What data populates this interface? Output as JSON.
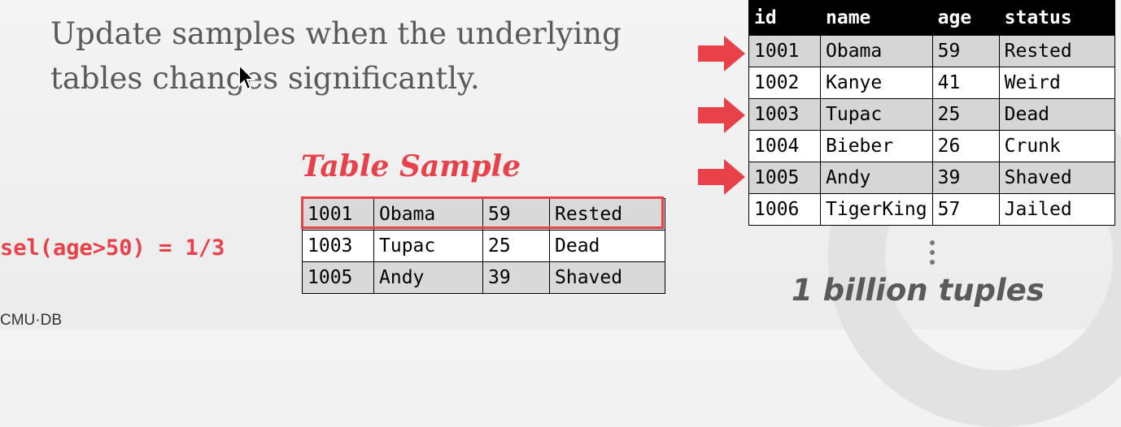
{
  "headline": {
    "line1": "Update samples when the underlying",
    "line2": "tables changes significantly."
  },
  "big_table": {
    "headers": [
      "id",
      "name",
      "age",
      "status"
    ],
    "rows": [
      [
        "1001",
        "Obama",
        "59",
        "Rested"
      ],
      [
        "1002",
        "Kanye",
        "41",
        "Weird"
      ],
      [
        "1003",
        "Tupac",
        "25",
        "Dead"
      ],
      [
        "1004",
        "Bieber",
        "26",
        "Crunk"
      ],
      [
        "1005",
        "Andy",
        "39",
        "Shaved"
      ],
      [
        "1006",
        "TigerKing",
        "57",
        "Jailed"
      ]
    ]
  },
  "sample": {
    "title": "Table Sample",
    "rows": [
      [
        "1001",
        "Obama",
        "59",
        "Rested"
      ],
      [
        "1003",
        "Tupac",
        "25",
        "Dead"
      ],
      [
        "1005",
        "Andy",
        "39",
        "Shaved"
      ]
    ]
  },
  "selectivity": "sel(age>50) = 1/3",
  "tuples_label": "1 billion tuples",
  "logo": "CMU·DB",
  "colors": {
    "accent": "#e8414a",
    "text": "#5a5a5a"
  },
  "icons": {
    "arrow": "right-arrow-icon",
    "cursor": "mouse-cursor-icon",
    "dots": "vertical-ellipsis-icon"
  }
}
